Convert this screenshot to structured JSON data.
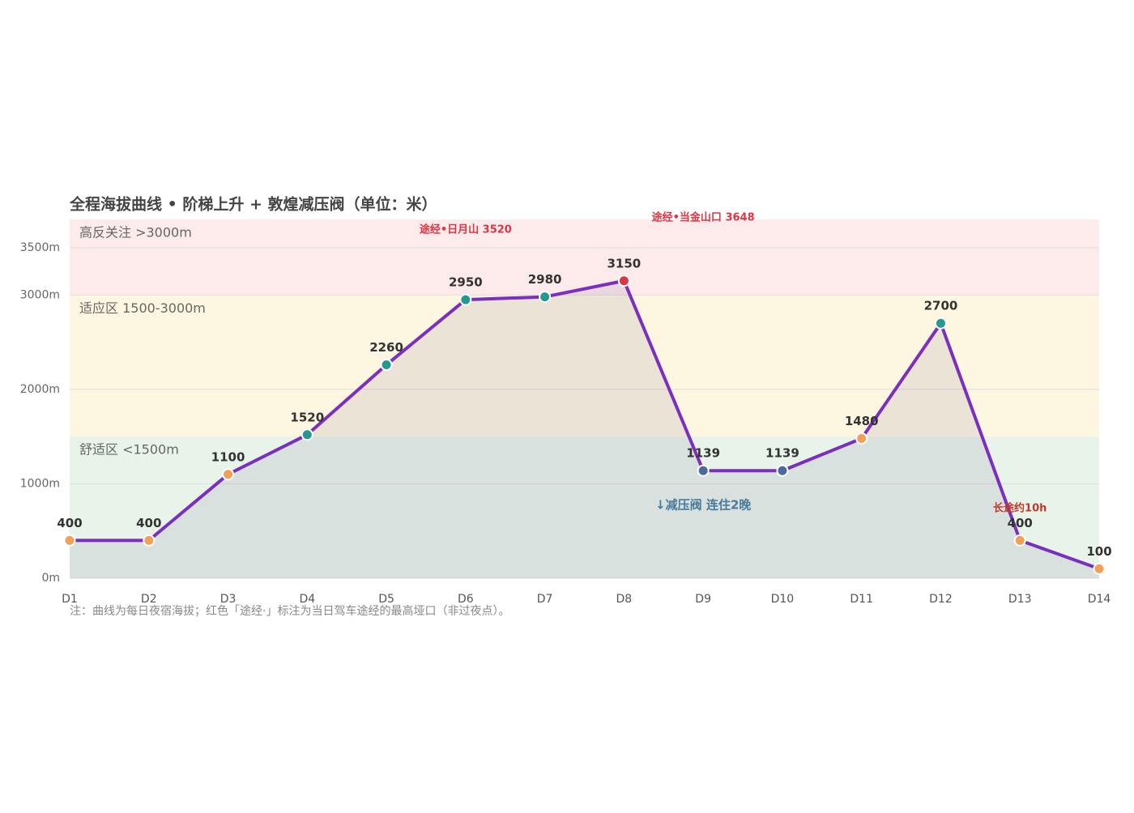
{
  "chart_data": {
    "type": "line",
    "title": "全程海拔曲线 • 阶梯上升 + 敦煌减压阀（单位：米）",
    "categories": [
      "D1",
      "D2",
      "D3",
      "D4",
      "D5",
      "D6",
      "D7",
      "D8",
      "D9",
      "D10",
      "D11",
      "D12",
      "D13",
      "D14"
    ],
    "series": [
      {
        "name": "夜宿海拔",
        "color": "#7b2fbe",
        "values": [
          400,
          400,
          1100,
          1520,
          2260,
          2950,
          2980,
          3150,
          1139,
          1139,
          1480,
          2700,
          400,
          100
        ],
        "point_colors": [
          "#f0a05a",
          "#f0a05a",
          "#f0a05a",
          "#26998f",
          "#26998f",
          "#26998f",
          "#26998f",
          "#dc3545",
          "#4a6a9c",
          "#4a6a9c",
          "#f0a05a",
          "#26998f",
          "#f0a05a",
          "#f0a05a"
        ]
      }
    ],
    "ylim": [
      0,
      3800
    ],
    "yticks": [
      {
        "value": 0,
        "label": "0m"
      },
      {
        "value": 1000,
        "label": "1000m"
      },
      {
        "value": 2000,
        "label": "2000m"
      },
      {
        "value": 3000,
        "label": "3000m"
      },
      {
        "value": 3500,
        "label": "3500m"
      }
    ],
    "grid": true,
    "bands": [
      {
        "label": "舒适区 <1500m",
        "from": 0,
        "to": 1500,
        "color": "#e8f4ea"
      },
      {
        "label": "适应区 1500-3000m",
        "from": 1500,
        "to": 3000,
        "color": "#fdf6e0"
      },
      {
        "label": "高反关注 >3000m",
        "from": 3000,
        "to": 3800,
        "color": "#fdeaea"
      }
    ],
    "annotations": [
      {
        "text": "途经•日月山 3520",
        "at": "D6",
        "color": "#dc3545"
      },
      {
        "text": "途经•当金山口 3648",
        "at": "D9",
        "color": "#dc3545"
      },
      {
        "text": "↓减压阀 连住2晚",
        "at": "D9",
        "color": "#4a7a9c"
      },
      {
        "text": "长途约10h",
        "at": "D13",
        "color": "#c0392b"
      }
    ],
    "note": "注：曲线为每日夜宿海拔；红色「途经·」标注为当日驾车途经的最高垭口（非过夜点）。"
  }
}
